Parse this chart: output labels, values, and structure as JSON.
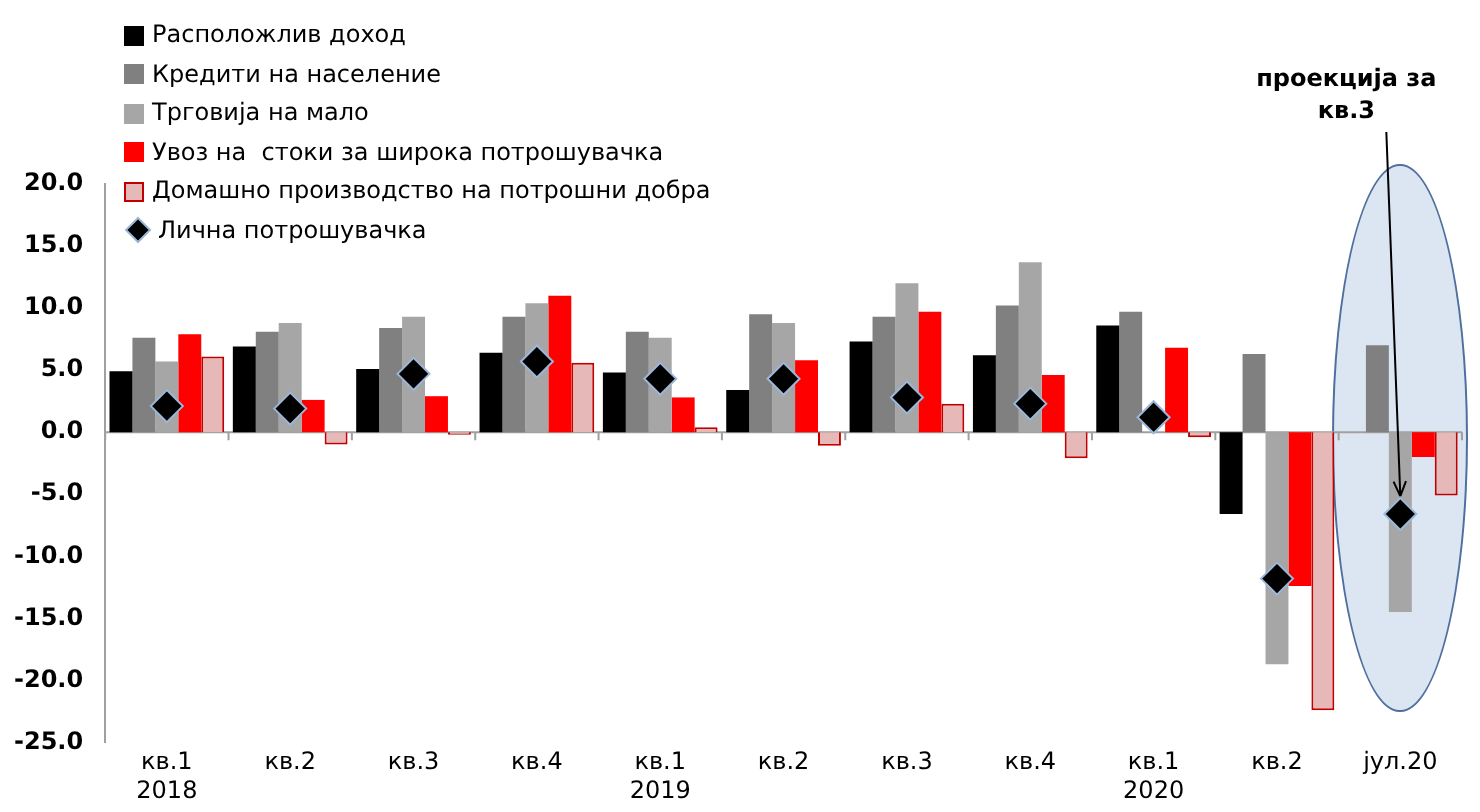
{
  "chart_data": {
    "type": "bar",
    "categories": [
      "кв.1\n2018",
      "кв.2",
      "кв.3",
      "кв.4",
      "кв.1\n2019",
      "кв.2",
      "кв.3",
      "кв.4",
      "кв.1\n2020",
      "кв.2",
      "јул.20"
    ],
    "series": [
      {
        "name": "Расположлив доход",
        "color": "#000000",
        "values": [
          4.9,
          6.9,
          5.1,
          6.4,
          4.8,
          3.4,
          7.3,
          6.2,
          8.6,
          -6.6,
          null
        ]
      },
      {
        "name": "Кредити на население",
        "color": "#808080",
        "values": [
          7.6,
          8.1,
          8.4,
          9.3,
          8.1,
          9.5,
          9.3,
          10.2,
          9.7,
          6.3,
          7.0
        ]
      },
      {
        "name": "Трговија на мало",
        "color": "#a6a6a6",
        "values": [
          5.7,
          8.8,
          9.3,
          10.4,
          7.6,
          8.8,
          12.0,
          13.7,
          null,
          -18.7,
          -14.5
        ]
      },
      {
        "name": "Увоз на  стоки за широка потрошувачка",
        "color": "#ff0000",
        "values": [
          7.9,
          2.6,
          2.9,
          11.0,
          2.8,
          5.8,
          9.7,
          4.6,
          6.8,
          -12.4,
          -2.0
        ]
      },
      {
        "name": "Домашно производство на потрошни добра",
        "color": "#e6b9b8",
        "values": [
          6.1,
          -1.0,
          -0.2,
          5.6,
          0.4,
          -1.1,
          2.3,
          -2.1,
          -0.4,
          -22.4,
          -5.1
        ]
      },
      {
        "name": "Лична потрошувачка",
        "type": "scatter",
        "marker": "diamond",
        "color": "#000000",
        "values": [
          2.1,
          1.9,
          4.7,
          5.7,
          4.3,
          4.3,
          2.8,
          2.3,
          1.2,
          -11.8,
          -6.6
        ]
      }
    ],
    "ylim": [
      -25,
      20
    ],
    "yticks": [
      {
        "value": -25,
        "label": "-25.0"
      },
      {
        "value": -20,
        "label": "-20.0"
      },
      {
        "value": -15,
        "label": "-15.0"
      },
      {
        "value": -10,
        "label": "-10.0"
      },
      {
        "value": -5,
        "label": "-5.0"
      },
      {
        "value": 0,
        "label": "0.0"
      },
      {
        "value": 5,
        "label": "5.0"
      },
      {
        "value": 10,
        "label": "10.0"
      },
      {
        "value": 15,
        "label": "15.0"
      },
      {
        "value": 20,
        "label": "20.0"
      }
    ],
    "bands": [
      {
        "axis": "x",
        "from": "јул.20",
        "to": "јул.20",
        "color": "#dce6f2"
      }
    ],
    "ref_lines": [
      {
        "axis": "y",
        "value": 0,
        "color": "#a0a0a0"
      }
    ],
    "annotations": [
      {
        "text": "проекција за\nкв.3",
        "x": "јул.20",
        "y": -6.6
      }
    ],
    "grid": false,
    "legend": "top left"
  }
}
